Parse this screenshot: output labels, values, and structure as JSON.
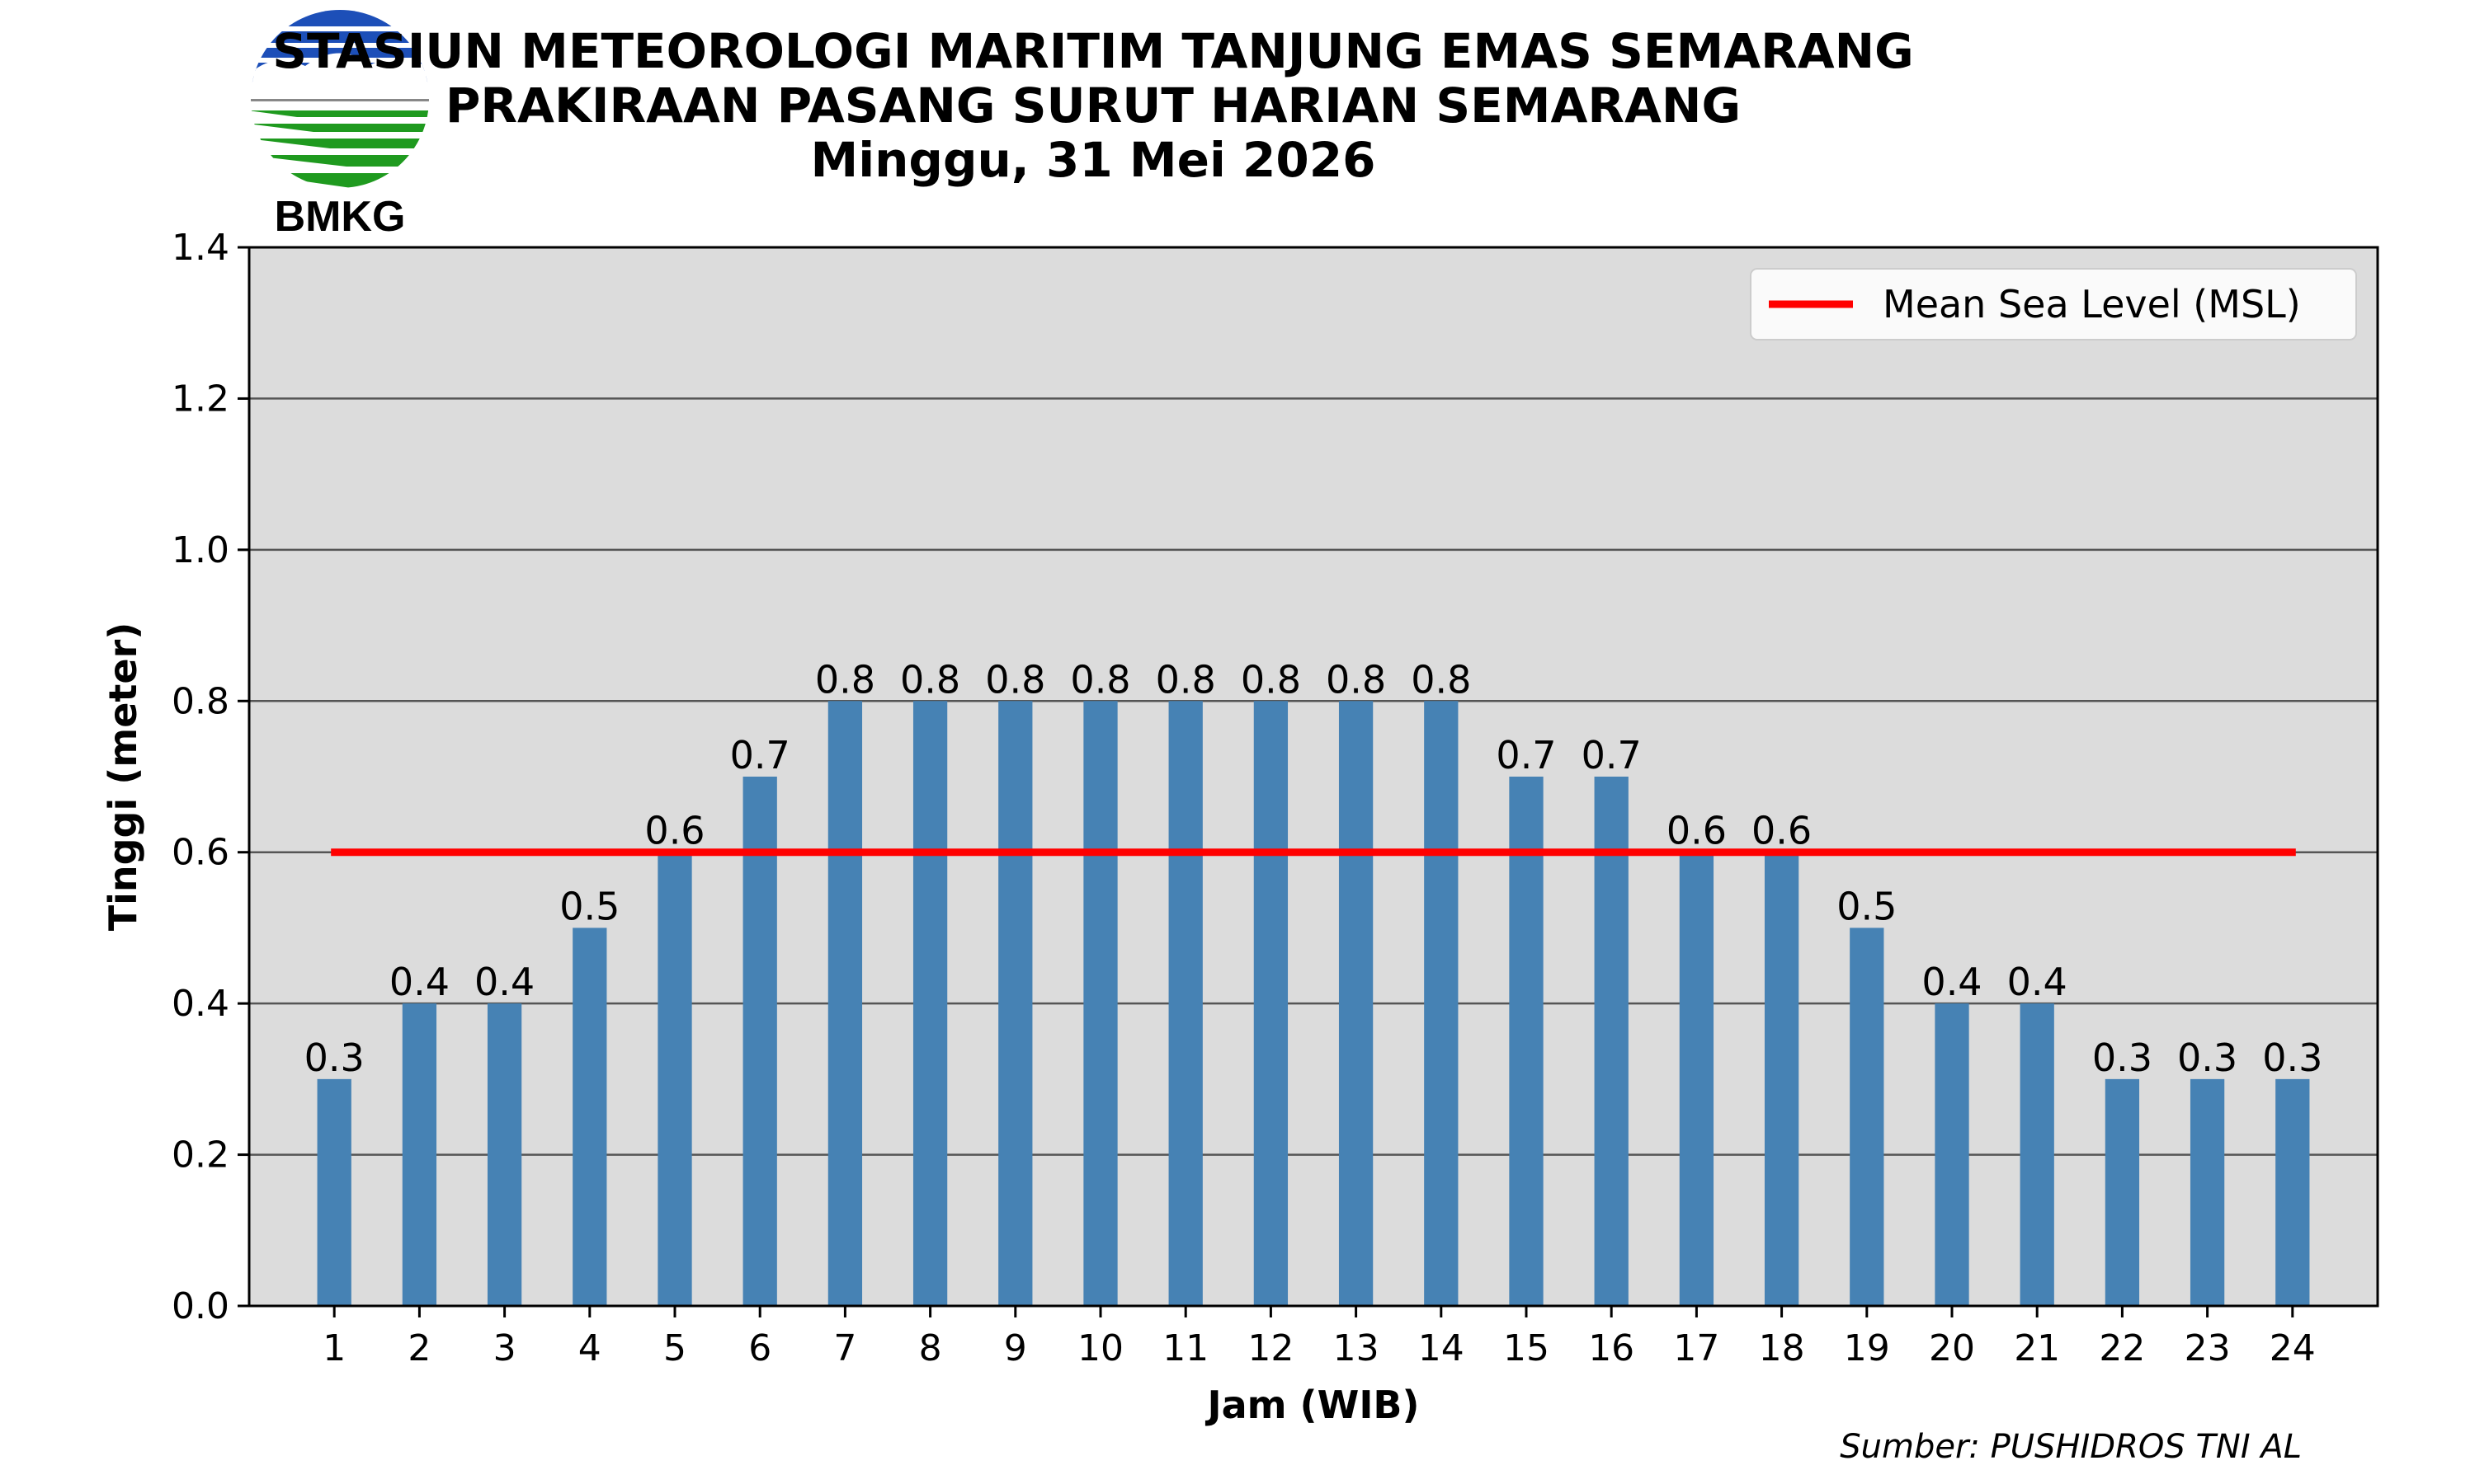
{
  "header": {
    "title_line1": "STASIUN METEOROLOGI MARITIM TANJUNG EMAS SEMARANG",
    "title_line2": "PRAKIRAAN PASANG SURUT HARIAN SEMARANG",
    "title_line3": "Minggu, 31 Mei 2026"
  },
  "logo": {
    "text": "BMKG",
    "colors": {
      "blue": "#1d4fb8",
      "green": "#1f9a1f",
      "gray": "#888888"
    }
  },
  "source": "Sumber: PUSHIDROS TNI AL",
  "chart_data": {
    "type": "bar",
    "categories": [
      "1",
      "2",
      "3",
      "4",
      "5",
      "6",
      "7",
      "8",
      "9",
      "10",
      "11",
      "12",
      "13",
      "14",
      "15",
      "16",
      "17",
      "18",
      "19",
      "20",
      "21",
      "22",
      "23",
      "24"
    ],
    "values": [
      0.3,
      0.4,
      0.4,
      0.5,
      0.6,
      0.7,
      0.8,
      0.8,
      0.8,
      0.8,
      0.8,
      0.8,
      0.8,
      0.8,
      0.7,
      0.7,
      0.6,
      0.6,
      0.5,
      0.4,
      0.4,
      0.3,
      0.3,
      0.3
    ],
    "xlabel": "Jam (WIB)",
    "ylabel": "Tinggi (meter)",
    "ylim": [
      0,
      1.4
    ],
    "yticks": [
      "0.0",
      "0.2",
      "0.4",
      "0.6",
      "0.8",
      "1.0",
      "1.2",
      "1.4"
    ],
    "grid": true,
    "bar_color": "#4682b4",
    "background_color": "#dcdcdc",
    "reference_line": {
      "name": "Mean Sea Level (MSL)",
      "value": 0.6,
      "color": "#ff0000"
    },
    "legend": {
      "position": "top-right",
      "entries": [
        "Mean Sea Level (MSL)"
      ]
    }
  }
}
